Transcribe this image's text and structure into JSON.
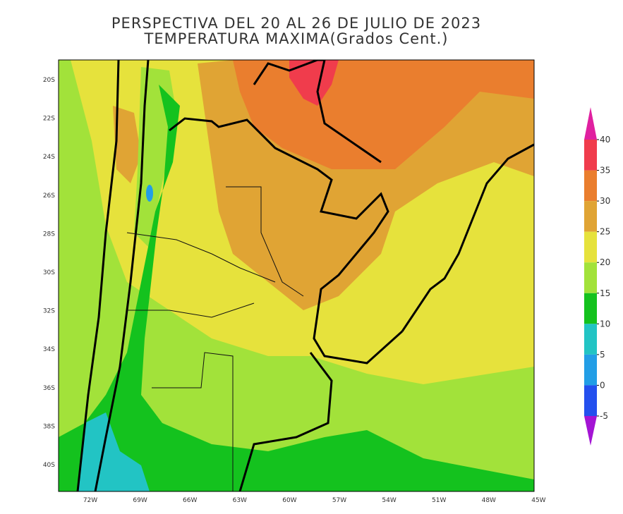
{
  "title": [
    "PERSPECTIVA DEL 20 AL 26 DE JULIO DE 2023",
    "TEMPERATURA MAXIMA(Grados Cent.)"
  ],
  "lat_labels": [
    "20S",
    "22S",
    "24S",
    "26S",
    "28S",
    "30S",
    "32S",
    "34S",
    "36S",
    "38S",
    "40S"
  ],
  "lon_labels": [
    "72W",
    "69W",
    "66W",
    "63W",
    "60W",
    "57W",
    "54W",
    "51W",
    "48W",
    "45W"
  ],
  "colorbar": {
    "ticks": [
      40,
      35,
      30,
      25,
      20,
      15,
      10,
      5,
      0,
      -5
    ],
    "colors": [
      "#e020a0",
      "#f03c4c",
      "#ea7e2e",
      "#e0a434",
      "#e6e23c",
      "#a2e23a",
      "#14c21e",
      "#22c4c4",
      "#229ee6",
      "#2450ee",
      "#a414d4"
    ]
  }
}
